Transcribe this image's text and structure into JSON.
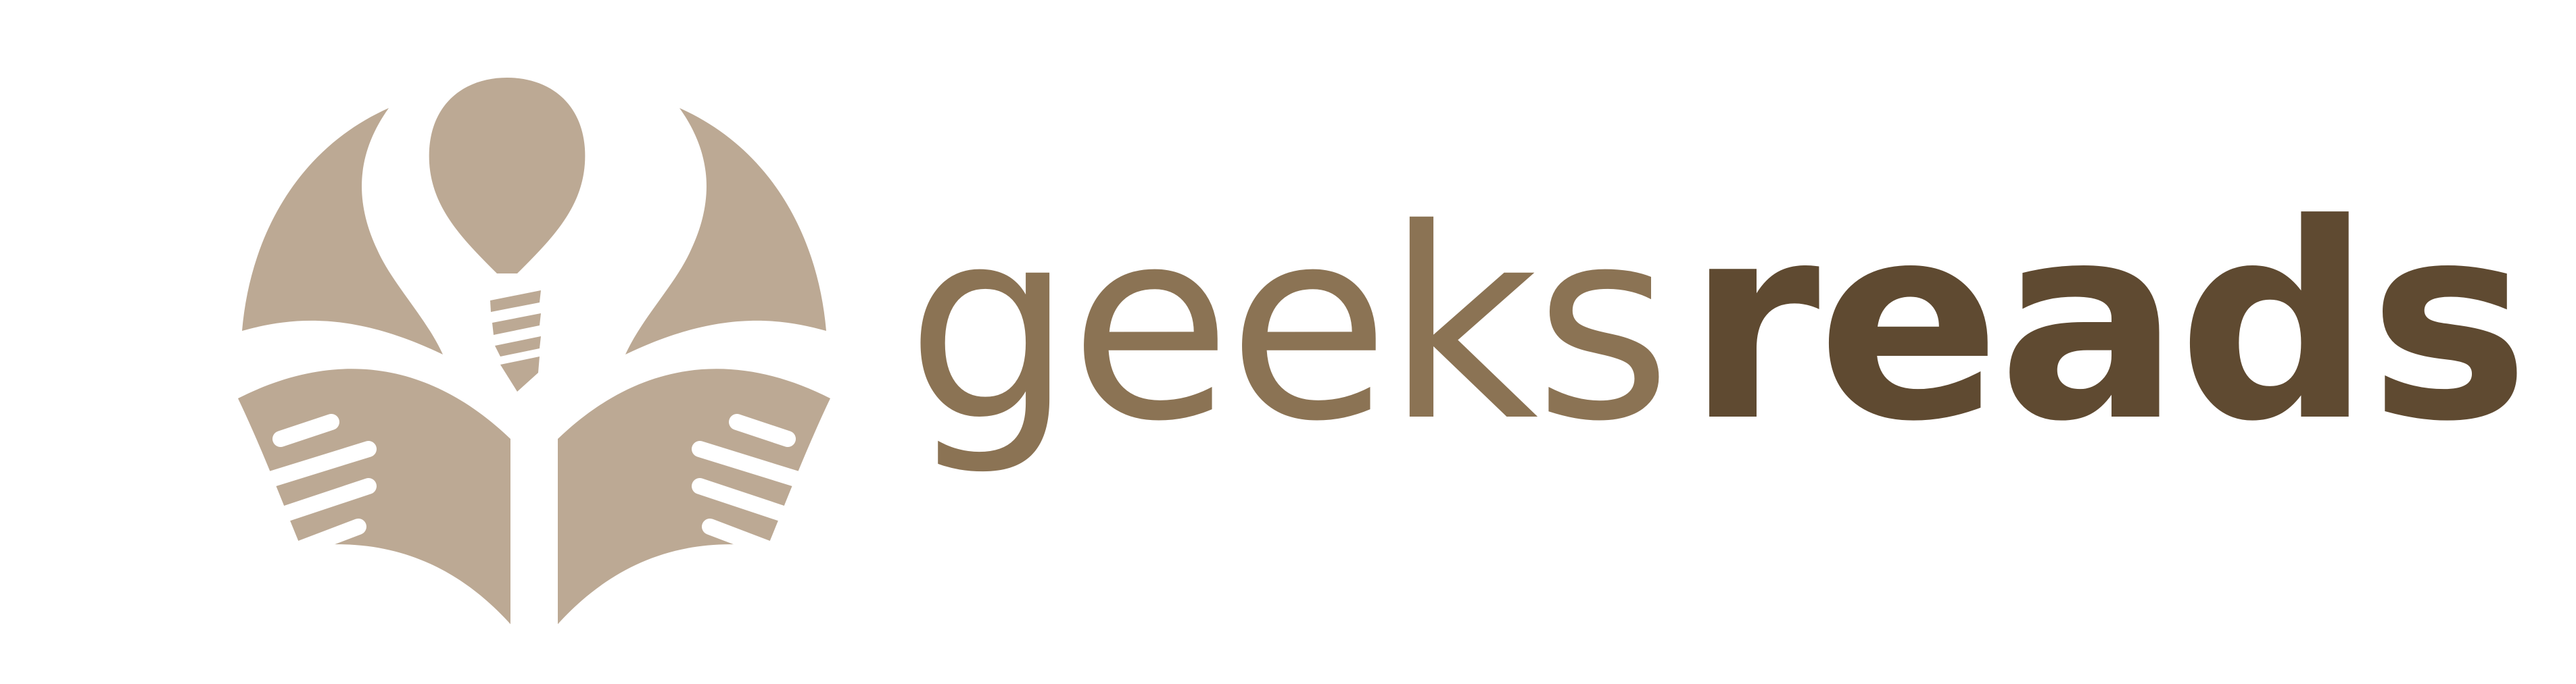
{
  "logo": {
    "emblem_icon": "reader-book-lightbulb-icon",
    "word_light": "geeks",
    "word_dark": "reads"
  },
  "colors": {
    "emblem": "#bca994",
    "word_light": "#8b7354",
    "word_dark": "#5f4a31",
    "background": "#ffffff"
  }
}
